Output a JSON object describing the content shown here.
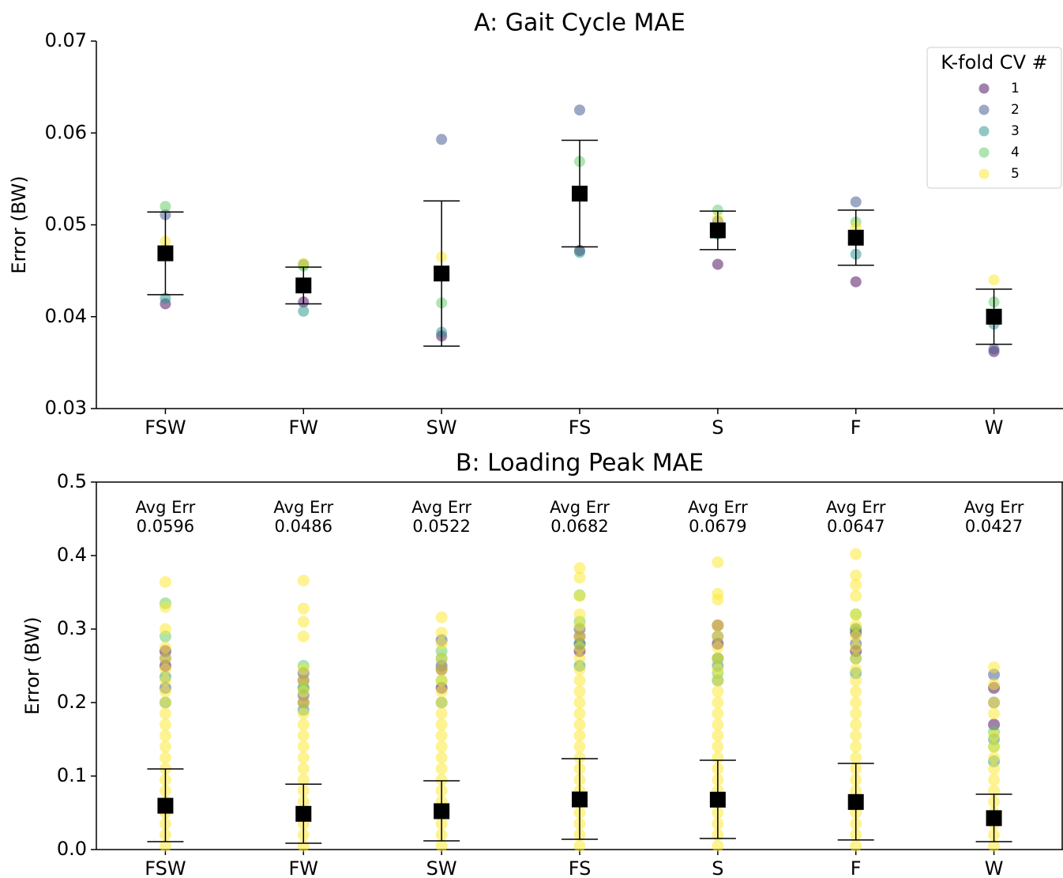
{
  "chart_data": [
    {
      "type": "dot-errorbar",
      "title": "A: Gait Cycle MAE",
      "ylabel": "Error (BW)",
      "categories": [
        "FSW",
        "FW",
        "SW",
        "FS",
        "S",
        "F",
        "W"
      ],
      "series": [
        {
          "name": "1",
          "color": "#440154",
          "values": [
            0.0414,
            0.0416,
            0.0379,
            0.0472,
            0.0457,
            0.0438,
            0.0362
          ]
        },
        {
          "name": "2",
          "color": "#3b528b",
          "values": [
            0.0511,
            0.0457,
            0.0593,
            0.0625,
            0.0504,
            0.0525,
            0.0365
          ]
        },
        {
          "name": "3",
          "color": "#21918c",
          "values": [
            0.042,
            0.0406,
            0.0383,
            0.047,
            0.049,
            0.0468,
            0.0392
          ]
        },
        {
          "name": "4",
          "color": "#5ec962",
          "values": [
            0.052,
            0.0455,
            0.0415,
            0.0569,
            0.0516,
            0.0503,
            0.0416
          ]
        },
        {
          "name": "5",
          "color": "#fde725",
          "values": [
            0.0482,
            0.0458,
            0.0465,
            0.0537,
            0.0507,
            0.0498,
            0.044
          ]
        }
      ],
      "means": [
        0.0469,
        0.0434,
        0.0447,
        0.0534,
        0.0494,
        0.0486,
        0.04
      ],
      "errors": [
        0.0045,
        0.002,
        0.0079,
        0.0058,
        0.0021,
        0.003,
        0.003
      ],
      "ylim": [
        0.03,
        0.07
      ],
      "yticks": [
        0.03,
        0.04,
        0.05,
        0.06,
        0.07
      ],
      "box": false,
      "legend": {
        "title": "K-fold CV #",
        "loc": "upper right"
      }
    },
    {
      "type": "strip-errorbar",
      "title": "B: Loading Peak MAE",
      "ylabel": "Error (BW)",
      "categories": [
        "FSW",
        "FW",
        "SW",
        "FS",
        "S",
        "F",
        "W"
      ],
      "series": [
        {
          "name": "1",
          "color": "#440154",
          "values": [
            [
              0.27,
              0.25
            ],
            [
              0.23,
              0.2
            ],
            [
              0.245,
              0.22
            ],
            [
              0.29,
              0.27
            ],
            [
              0.305,
              0.28
            ],
            [
              0.295,
              0.27
            ],
            [
              0.22,
              0.17
            ]
          ]
        },
        {
          "name": "2",
          "color": "#3b528b",
          "values": [
            [
              0.26,
              0.22
            ],
            [
              0.24,
              0.21
            ],
            [
              0.285,
              0.25
            ],
            [
              0.3,
              0.28
            ],
            [
              0.29,
              0.26
            ],
            [
              0.3,
              0.28
            ],
            [
              0.238,
              0.2
            ]
          ]
        },
        {
          "name": "3",
          "color": "#21918c",
          "values": [
            [
              0.235,
              0.2
            ],
            [
              0.22,
              0.19
            ],
            [
              0.26,
              0.2
            ],
            [
              0.28,
              0.25
            ],
            [
              0.25,
              0.23
            ],
            [
              0.26,
              0.24
            ],
            [
              0.15,
              0.12
            ]
          ]
        },
        {
          "name": "4",
          "color": "#5ec962",
          "values": [
            [
              0.335,
              0.29
            ],
            [
              0.25,
              0.22
            ],
            [
              0.27,
              0.23
            ],
            [
              0.346,
              0.31
            ],
            [
              0.26,
              0.24
            ],
            [
              0.32,
              0.3
            ],
            [
              0.16,
              0.14
            ]
          ]
        },
        {
          "name": "5",
          "color": "#fde725",
          "values": [
            [
              0.005,
              0.02,
              0.035,
              0.05,
              0.065,
              0.08,
              0.095,
              0.11,
              0.125,
              0.14,
              0.155,
              0.17,
              0.185,
              0.2,
              0.215,
              0.23,
              0.245,
              0.26,
              0.275,
              0.3,
              0.33,
              0.364
            ],
            [
              0.005,
              0.02,
              0.035,
              0.05,
              0.065,
              0.08,
              0.095,
              0.11,
              0.125,
              0.14,
              0.155,
              0.17,
              0.185,
              0.2,
              0.215,
              0.23,
              0.245,
              0.29,
              0.31,
              0.328,
              0.366
            ],
            [
              0.005,
              0.02,
              0.035,
              0.05,
              0.065,
              0.08,
              0.095,
              0.11,
              0.125,
              0.14,
              0.155,
              0.17,
              0.185,
              0.2,
              0.215,
              0.23,
              0.245,
              0.26,
              0.28,
              0.295,
              0.316
            ],
            [
              0.005,
              0.02,
              0.035,
              0.05,
              0.065,
              0.08,
              0.095,
              0.11,
              0.125,
              0.14,
              0.155,
              0.17,
              0.185,
              0.2,
              0.215,
              0.23,
              0.245,
              0.26,
              0.275,
              0.29,
              0.305,
              0.32,
              0.345,
              0.37,
              0.383
            ],
            [
              0.005,
              0.02,
              0.035,
              0.05,
              0.065,
              0.08,
              0.095,
              0.11,
              0.125,
              0.14,
              0.155,
              0.17,
              0.185,
              0.2,
              0.215,
              0.23,
              0.245,
              0.26,
              0.275,
              0.29,
              0.305,
              0.34,
              0.348,
              0.391
            ],
            [
              0.005,
              0.02,
              0.035,
              0.05,
              0.065,
              0.08,
              0.095,
              0.11,
              0.125,
              0.14,
              0.155,
              0.17,
              0.185,
              0.2,
              0.215,
              0.23,
              0.245,
              0.26,
              0.275,
              0.29,
              0.305,
              0.32,
              0.345,
              0.36,
              0.373,
              0.402
            ],
            [
              0.005,
              0.02,
              0.035,
              0.05,
              0.065,
              0.08,
              0.095,
              0.11,
              0.125,
              0.14,
              0.155,
              0.185,
              0.2,
              0.225,
              0.248
            ]
          ]
        }
      ],
      "means": [
        0.0596,
        0.0486,
        0.0522,
        0.0682,
        0.0679,
        0.0647,
        0.0427
      ],
      "value_labels": [
        "Avg Err\n0.0596",
        "Avg Err\n0.0486",
        "Avg Err\n0.0522",
        "Avg Err\n0.0682",
        "Avg Err\n0.0679",
        "Avg Err\n0.0647",
        "Avg Err\n0.0427"
      ],
      "lower": [
        0.0108,
        0.0086,
        0.0118,
        0.014,
        0.015,
        0.013,
        0.0108
      ],
      "upper": [
        0.1097,
        0.089,
        0.0935,
        0.1237,
        0.1215,
        0.1172,
        0.0753
      ],
      "ylim": [
        0,
        0.5
      ],
      "yticks": [
        {
          "value": 0,
          "label": "0.0"
        },
        0.1,
        0.2,
        0.3,
        0.4,
        0.5
      ],
      "box": true
    }
  ]
}
